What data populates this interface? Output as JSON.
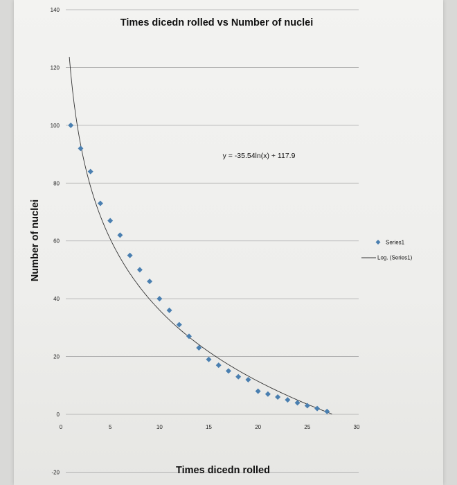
{
  "colors": {
    "marker": "#4a7fb0",
    "trendline": "#333333",
    "gridline": "#a8a8a8",
    "background": "#efefed"
  },
  "chart_data": {
    "type": "scatter",
    "title": "Times dicedn rolled vs Number of nuclei",
    "xlabel": "Times dicedn rolled",
    "ylabel": "Number of nuclei",
    "xlim": [
      0,
      30
    ],
    "ylim": [
      -20,
      140
    ],
    "x_ticks": [
      0,
      5,
      10,
      15,
      20,
      25,
      30
    ],
    "y_ticks": [
      -20,
      0,
      20,
      40,
      60,
      80,
      100,
      120,
      140
    ],
    "x_tick_labels": [
      "0",
      "5",
      "10",
      "15",
      "20",
      "25",
      "30"
    ],
    "y_tick_labels": [
      "-20",
      "0",
      "20",
      "40",
      "60",
      "80",
      "100",
      "120",
      "140"
    ],
    "grid": "horizontal",
    "legend_position": "right",
    "series": [
      {
        "name": "Series1",
        "marker": "diamond",
        "x": [
          1,
          2,
          3,
          4,
          5,
          6,
          7,
          8,
          9,
          10,
          11,
          12,
          13,
          14,
          15,
          16,
          17,
          18,
          19,
          20,
          21,
          22,
          23,
          24,
          25,
          26,
          27
        ],
        "y": [
          100,
          92,
          84,
          73,
          67,
          62,
          55,
          50,
          46,
          40,
          36,
          31,
          27,
          23,
          19,
          17,
          15,
          13,
          12,
          8,
          7,
          6,
          5,
          4,
          3,
          2,
          1
        ]
      }
    ],
    "trendline": {
      "name": "Log. (Series1)",
      "type": "logarithmic",
      "a": -35.54,
      "b": 117.9,
      "x_range": [
        0.85,
        27.5
      ]
    },
    "annotations": [
      {
        "text": "y = -35.54ln(x) + 117.9",
        "x": 20,
        "y": 91
      }
    ]
  }
}
